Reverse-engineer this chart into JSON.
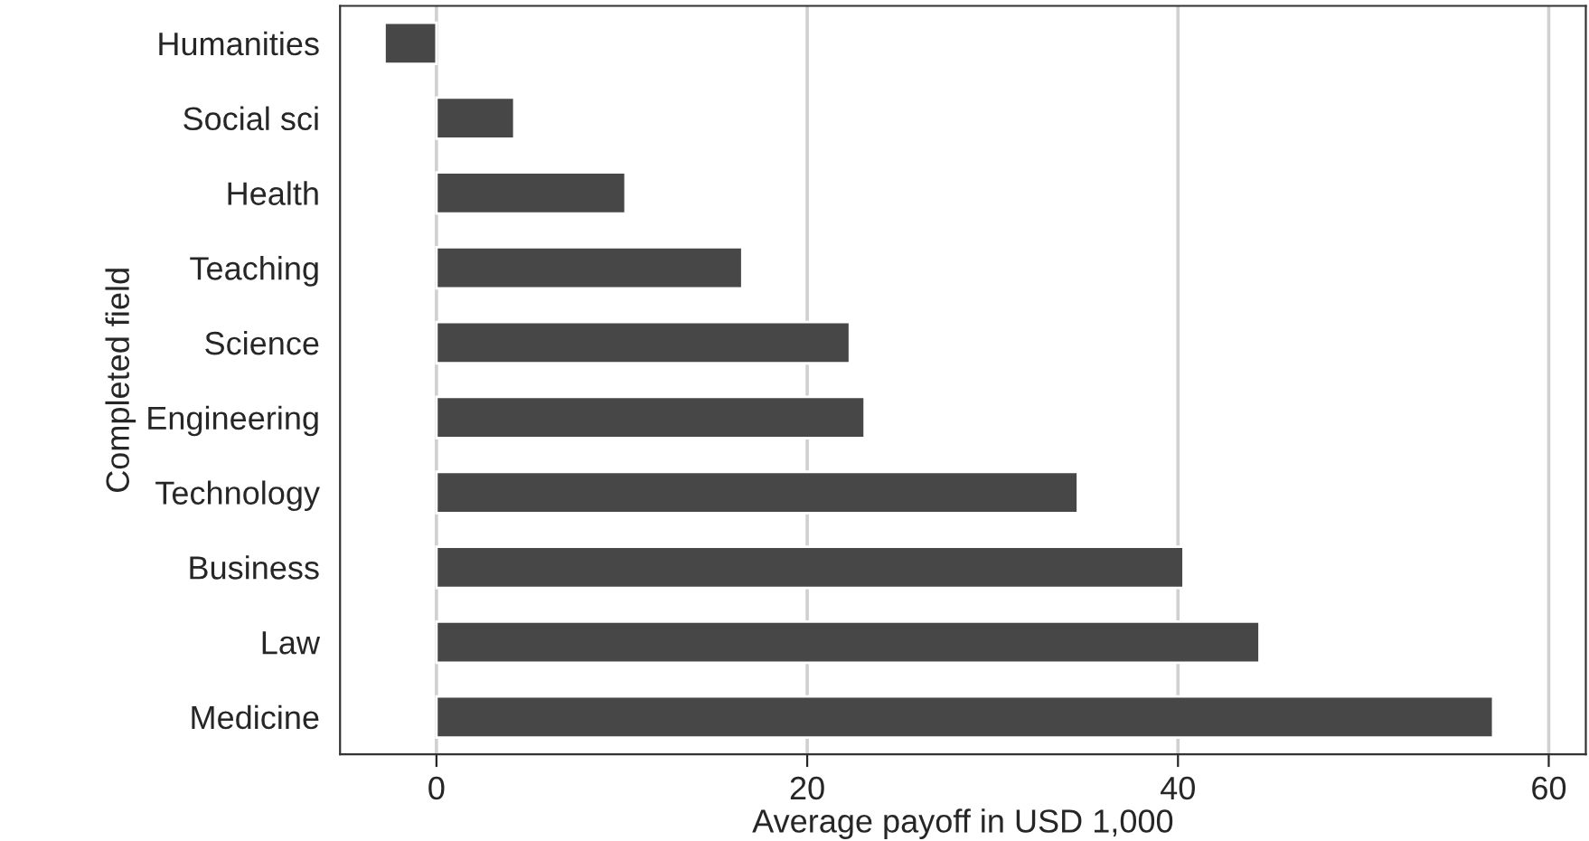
{
  "chart_data": {
    "type": "bar",
    "orientation": "horizontal",
    "ylabel": "Completed field",
    "xlabel": "Average payoff in USD 1,000",
    "categories": [
      "Humanities",
      "Social sci",
      "Health",
      "Teaching",
      "Science",
      "Engineering",
      "Technology",
      "Business",
      "Law",
      "Medicine"
    ],
    "values": [
      -2.8,
      4.2,
      10.2,
      16.5,
      22.3,
      23.1,
      34.6,
      40.3,
      44.4,
      57.0
    ],
    "color": "#474747",
    "xlim": [
      -5.2,
      62
    ],
    "xticks": [
      0,
      20,
      40,
      60
    ],
    "grid": "x"
  }
}
